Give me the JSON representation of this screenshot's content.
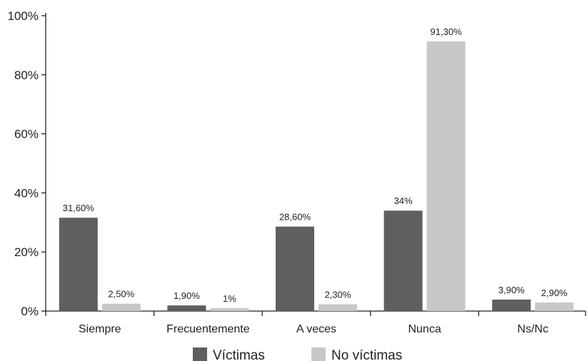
{
  "chart_data": {
    "type": "bar",
    "categories": [
      "Siempre",
      "Frecuentemente",
      "A veces",
      "Nunca",
      "Ns/Nc"
    ],
    "series": [
      {
        "name": "Víctimas",
        "color": "#5f5f5f",
        "values": [
          31.6,
          1.9,
          28.6,
          34,
          3.9
        ],
        "labels": [
          "31,60%",
          "1,90%",
          "28,60%",
          "34%",
          "3,90%"
        ]
      },
      {
        "name": "No víctimas",
        "color": "#c7c8ca",
        "values": [
          2.5,
          1,
          2.3,
          91.3,
          2.9
        ],
        "labels": [
          "2,50%",
          "1%",
          "2,30%",
          "91,30%",
          "2,90%"
        ]
      }
    ],
    "yticks": [
      0,
      20,
      40,
      60,
      80,
      100
    ],
    "ytick_labels": [
      "0%",
      "20%",
      "40%",
      "60%",
      "80%",
      "100%"
    ],
    "ylim": [
      0,
      100
    ],
    "grid": false,
    "legend_position": "bottom"
  }
}
